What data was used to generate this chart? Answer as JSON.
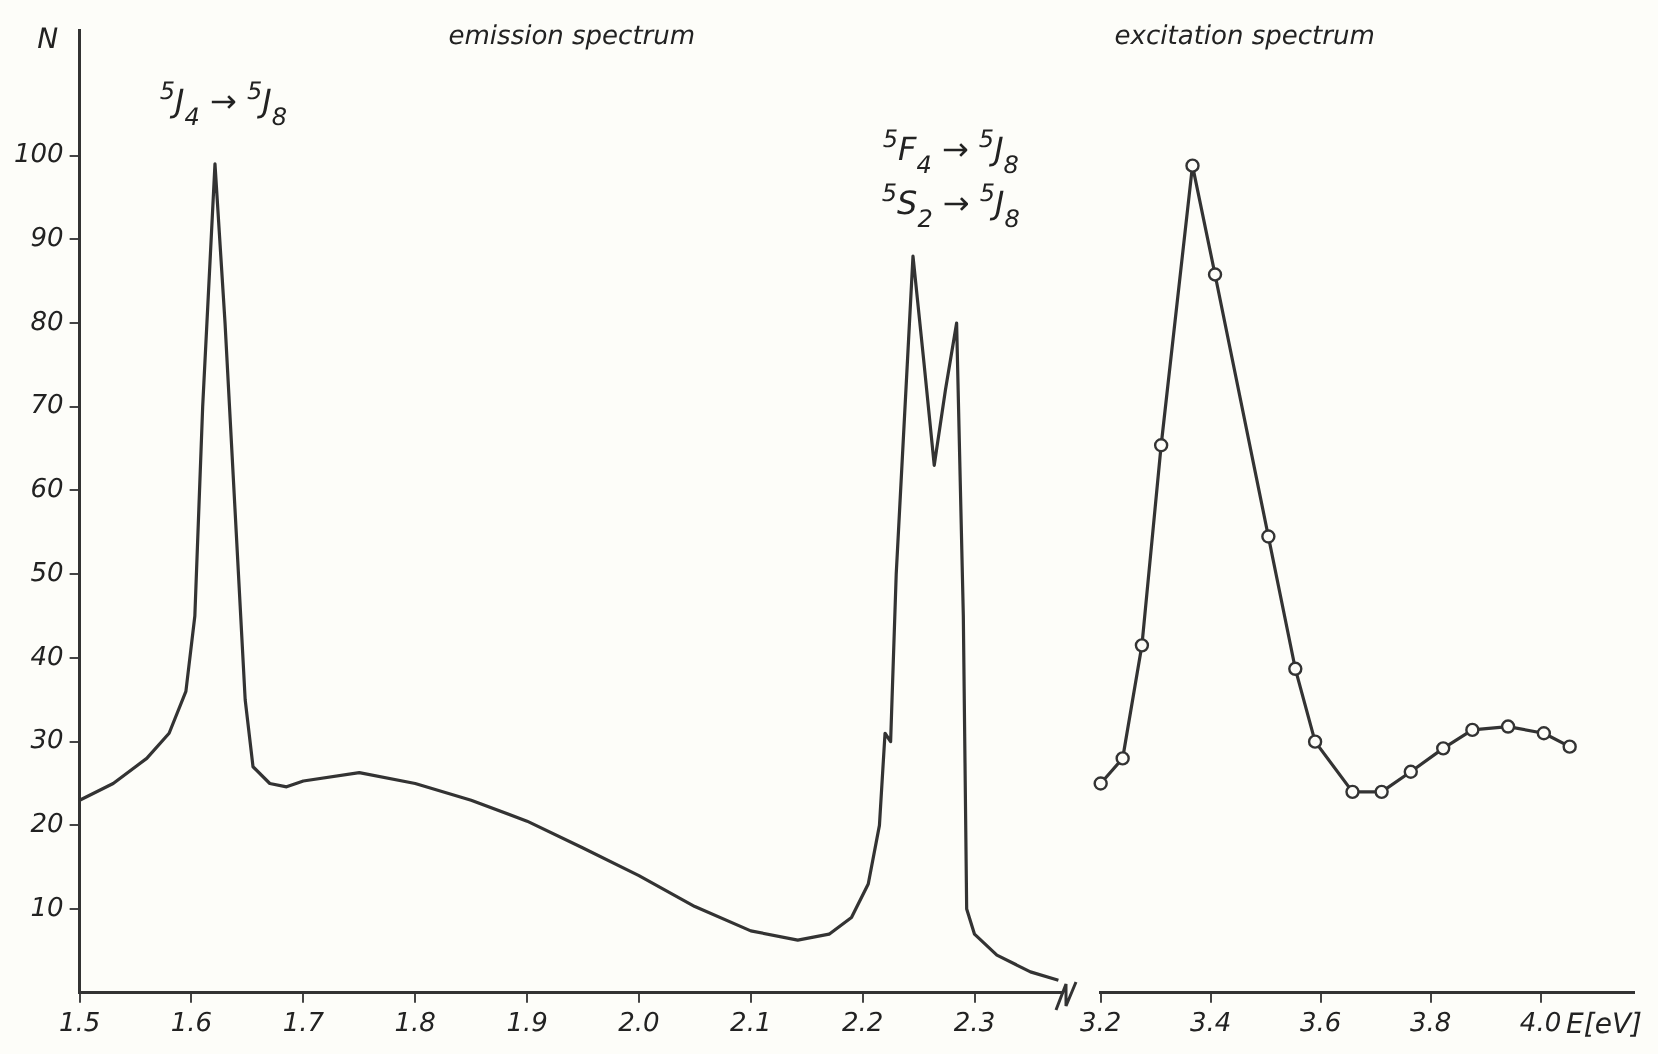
{
  "chart_data": [
    {
      "type": "line",
      "ylabel": "N",
      "xlim": [
        1.5,
        2.38
      ],
      "ylim": [
        0,
        115
      ],
      "xticks": [
        1.5,
        1.6,
        1.7,
        1.8,
        1.9,
        {
          "value": 2,
          "label": "2.0"
        },
        2.1,
        2.2,
        2.3
      ],
      "yticks": [
        10,
        20,
        30,
        40,
        50,
        60,
        70,
        80,
        90,
        100
      ],
      "grid": false,
      "legend": false,
      "marker": "none",
      "line_style": "solid",
      "annotations": [
        "emission spectrum",
        "$^{5}$J$_{4}$ → $^{5}$J$_{8}$",
        "$^{5}$F$_{4}$ → $^{5}$J$_{8}$",
        "$^{5}$S$_{2}$ → $^{5}$J$_{8}$"
      ],
      "series": [
        {
          "color": "#333333",
          "x": [
            1.5,
            1.53,
            1.56,
            1.58,
            1.595,
            1.603,
            1.61,
            1.621,
            1.63,
            1.64,
            1.648,
            1.655,
            1.67,
            1.685,
            1.7,
            1.75,
            1.8,
            1.85,
            1.9,
            1.95,
            2.0,
            2.05,
            2.1,
            2.142,
            2.17,
            2.19,
            2.205,
            2.215,
            2.22,
            2.225,
            2.23,
            2.245,
            2.255,
            2.264,
            2.274,
            2.284,
            2.29,
            2.293,
            2.3,
            2.32,
            2.35,
            2.375
          ],
          "values": [
            23,
            25,
            28,
            31,
            36,
            45,
            70,
            99,
            80,
            55,
            35,
            27,
            25,
            24.6,
            25.3,
            26.3,
            25,
            23,
            20.5,
            17.3,
            14,
            10.3,
            7.4,
            6.3,
            7,
            9,
            13,
            20,
            31,
            30,
            50,
            88,
            75,
            63,
            72,
            80,
            45,
            10,
            7,
            4.5,
            2.5,
            1.5
          ]
        }
      ]
    },
    {
      "type": "line",
      "xlabel": "E[eV]",
      "xlim": [
        3.2,
        4.17
      ],
      "ylim": [
        0,
        100
      ],
      "xticks": [
        3.2,
        3.4,
        3.6,
        3.8,
        {
          "value": 4,
          "label": "4.0"
        }
      ],
      "yticks": [
        10,
        20,
        30,
        40,
        50,
        60,
        70,
        80,
        90,
        100
      ],
      "tick_labels": "x",
      "grid": false,
      "legend": false,
      "marker": "circle",
      "line_style": "solid",
      "annotations": [
        "excitation spectrum"
      ],
      "series": [
        {
          "color": "#333333",
          "x": [
            3.2,
            3.24,
            3.275,
            3.31,
            3.367,
            3.408,
            3.505,
            3.554,
            3.59,
            3.658,
            3.711,
            3.764,
            3.823,
            3.876,
            3.941,
            4.006,
            4.053
          ],
          "values": [
            25,
            28,
            41.5,
            65.4,
            98.8,
            85.8,
            54.5,
            38.7,
            30,
            24,
            24,
            26.4,
            29.2,
            31.4,
            31.8,
            31,
            29.4
          ]
        }
      ]
    }
  ]
}
